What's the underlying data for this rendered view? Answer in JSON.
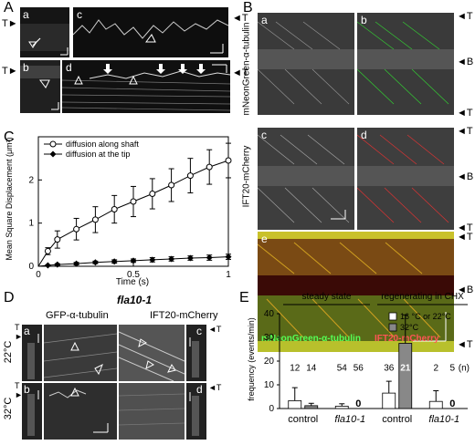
{
  "panels": {
    "A": {
      "label": "A",
      "subpanels": [
        "a",
        "b",
        "c",
        "d"
      ],
      "tip_marker": "T"
    },
    "B": {
      "label": "B",
      "subpanels": [
        "a",
        "b",
        "c",
        "d",
        "e"
      ],
      "row_labels": [
        "mNeonGreen-α-tubulin",
        "IFT20-mCherry"
      ],
      "markers": [
        "T",
        "B",
        "T",
        "T",
        "B",
        "T",
        "T",
        "B",
        "T"
      ],
      "overlay_text_green": "mNeonGreen-α-tubulin",
      "overlay_text_red": "IFT20-mCherry"
    },
    "C": {
      "label": "C"
    },
    "D": {
      "label": "D",
      "strain": "fla10-1",
      "col_left": "GFP-α-tubulin",
      "col_right": "IFT20-mCherry",
      "row_top": "22°C",
      "row_bottom": "32°C",
      "subpanels": [
        "a",
        "b",
        "c",
        "d"
      ],
      "markers": [
        "T",
        "T",
        "T",
        "T"
      ]
    },
    "E": {
      "label": "E"
    }
  },
  "chart_data": [
    {
      "type": "line",
      "panel": "C",
      "xlabel": "Time (s)",
      "ylabel": "Mean Square Displacement (μm²)",
      "xlim": [
        0,
        1
      ],
      "ylim": [
        0,
        3
      ],
      "xticks": [
        "0",
        "0.5",
        "1"
      ],
      "yticks": [
        "0",
        "1",
        "2"
      ],
      "legend_position": "top-left",
      "series": [
        {
          "name": "diffusion along shaft",
          "marker": "open-circle",
          "x": [
            0.05,
            0.1,
            0.2,
            0.3,
            0.4,
            0.5,
            0.6,
            0.7,
            0.8,
            0.9,
            1.0
          ],
          "y": [
            0.35,
            0.62,
            0.86,
            1.08,
            1.32,
            1.5,
            1.68,
            1.88,
            2.1,
            2.3,
            2.45
          ],
          "err": [
            0.08,
            0.2,
            0.25,
            0.3,
            0.32,
            0.35,
            0.35,
            0.38,
            0.4,
            0.4,
            0.4
          ]
        },
        {
          "name": "diffusion at the tip",
          "marker": "filled-diamond",
          "x": [
            0.05,
            0.1,
            0.2,
            0.3,
            0.4,
            0.5,
            0.6,
            0.7,
            0.8,
            0.9,
            1.0
          ],
          "y": [
            0.02,
            0.04,
            0.06,
            0.09,
            0.11,
            0.13,
            0.15,
            0.17,
            0.19,
            0.2,
            0.22
          ],
          "err": [
            0.01,
            0.02,
            0.03,
            0.03,
            0.04,
            0.04,
            0.05,
            0.05,
            0.05,
            0.06,
            0.06
          ]
        }
      ]
    },
    {
      "type": "bar",
      "panel": "E",
      "ylabel": "frequency (events/min)",
      "ylim": [
        0,
        40
      ],
      "yticks": [
        "0",
        "10",
        "20",
        "30",
        "40"
      ],
      "group_headers": [
        "steady state",
        "regenerating in CHX"
      ],
      "categories": [
        "control",
        "fla10-1",
        "control",
        "fla10-1"
      ],
      "n_label": "(n)",
      "legend_position": "top-right",
      "series": [
        {
          "name": "16 °C or 22°C",
          "color": "#ffffff",
          "values": [
            3.3,
            1.0,
            6.5,
            3.0
          ],
          "err": [
            5.5,
            1.0,
            5.0,
            4.5
          ],
          "n": [
            "12",
            "54",
            "36",
            "2"
          ]
        },
        {
          "name": "32°C",
          "color": "#888888",
          "values": [
            1.2,
            0.0,
            27.5,
            0.0
          ],
          "err": [
            1.0,
            0.0,
            12.0,
            0.0
          ],
          "n": [
            "14",
            "56",
            "21",
            "5"
          ],
          "zero_labels": [
            "",
            "0",
            "",
            "0"
          ]
        }
      ]
    }
  ]
}
